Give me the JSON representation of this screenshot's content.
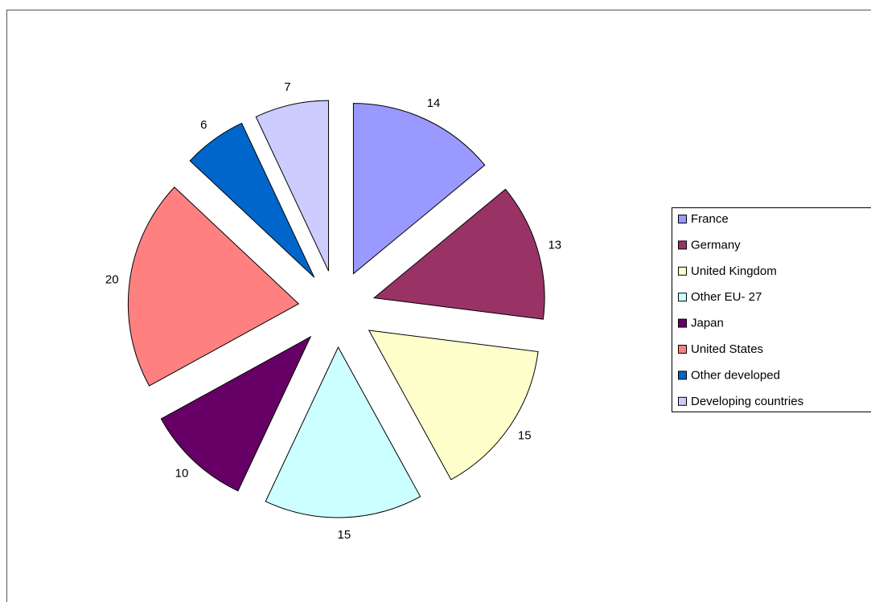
{
  "chart_data": {
    "type": "pie",
    "categories": [
      "France",
      "Germany",
      "United Kingdom",
      "Other EU- 27",
      "Japan",
      "United States",
      "Other developed",
      "Developing countries"
    ],
    "values": [
      14,
      13,
      15,
      15,
      10,
      20,
      6,
      7
    ],
    "colors": [
      "#9999ff",
      "#993366",
      "#ffffcc",
      "#ccffff",
      "#660066",
      "#ff8080",
      "#0066cc",
      "#ccccff"
    ],
    "exploded": true,
    "legend": "right"
  }
}
